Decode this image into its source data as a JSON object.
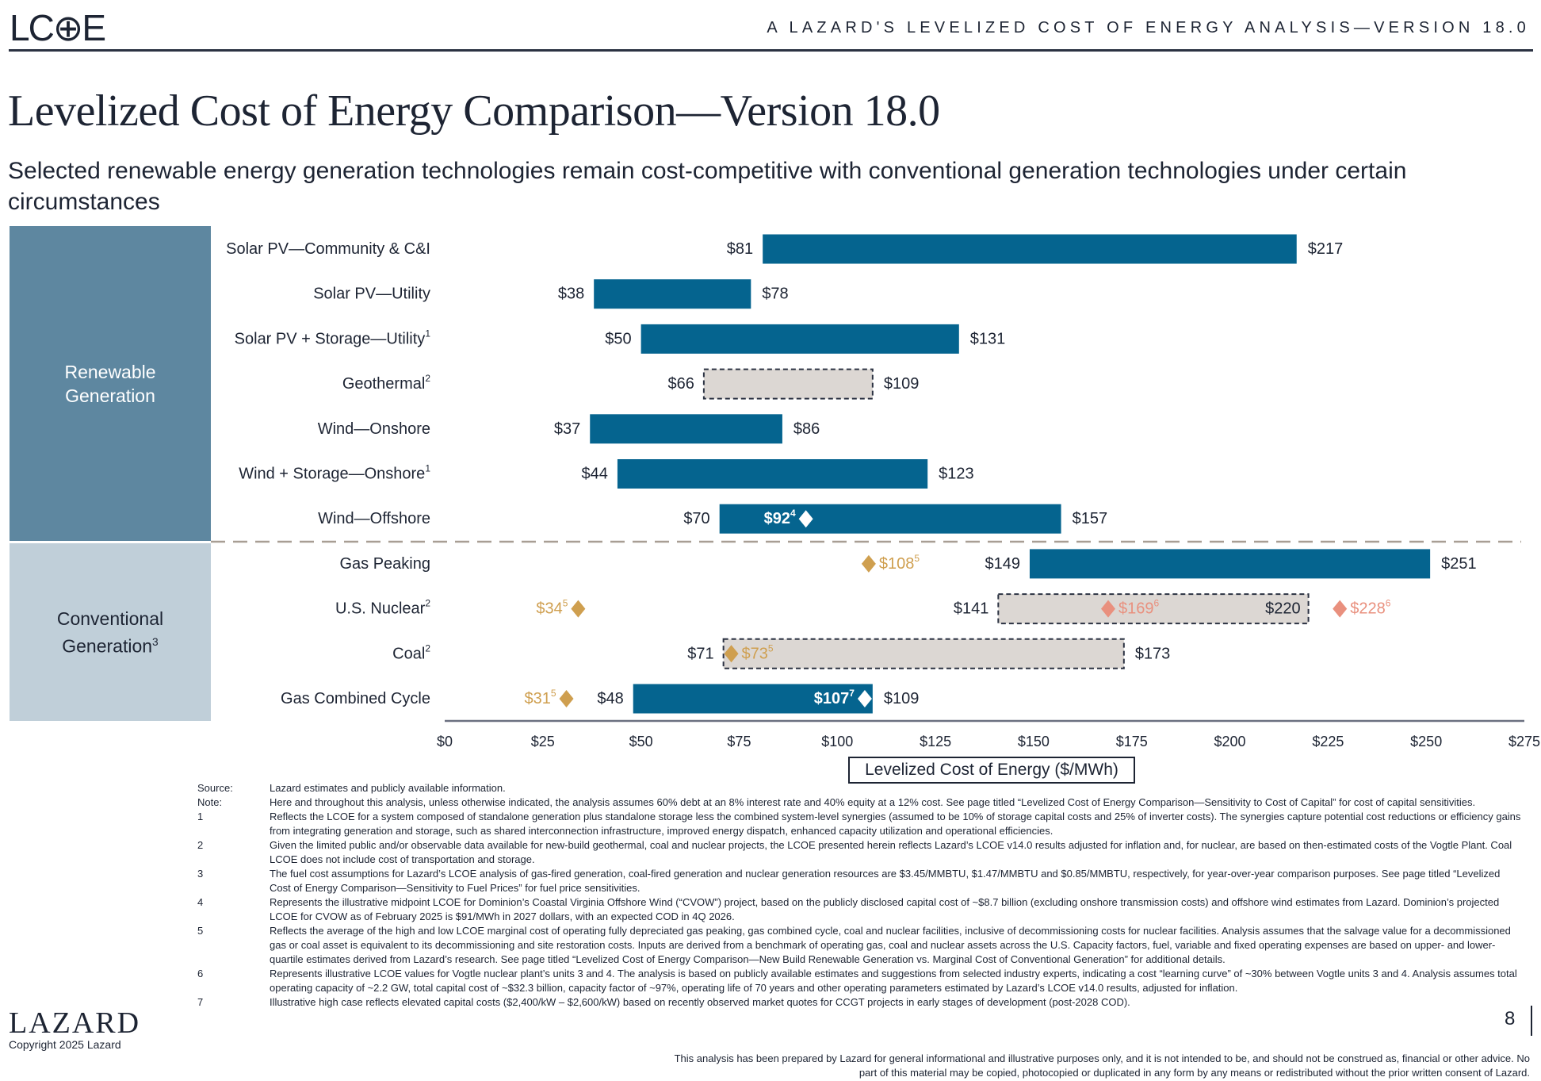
{
  "header": {
    "logo": "LC⊕E",
    "section_title": "A   LAZARD'S LEVELIZED COST OF ENERGY ANALYSIS—VERSION 18.0"
  },
  "title": "Levelized Cost of Energy Comparison—Version 18.0",
  "subtitle": "Selected renewable energy generation technologies remain cost-competitive with conventional generation technologies under certain circumstances",
  "groups": {
    "renewable": {
      "line1": "Renewable",
      "line2": "Generation"
    },
    "conventional": {
      "line1": "Conventional",
      "line2": "Generation",
      "sup": "3"
    }
  },
  "colors": {
    "bar": "#05648f",
    "dashed_fill": "#dcd7d3",
    "gold": "#cf9f4f",
    "salmon": "#e9907e",
    "text": "#1d2433"
  },
  "chart_data": {
    "type": "bar",
    "subtype": "floating-range",
    "xlabel": "Levelized Cost of Energy ($/MWh)",
    "xlim": [
      0,
      275
    ],
    "xticks": [
      "$0",
      "$25",
      "$50",
      "$75",
      "$100",
      "$125",
      "$150",
      "$175",
      "$200",
      "$225",
      "$250",
      "$275"
    ],
    "xtick_values": [
      0,
      25,
      50,
      75,
      100,
      125,
      150,
      175,
      200,
      225,
      250,
      275
    ],
    "rows": [
      {
        "label": "Solar PV—Community & C&I",
        "sup": "",
        "group": "renewable",
        "min": 81,
        "max": 217,
        "style": "solid",
        "min_label": "$81",
        "max_label": "$217",
        "markers": []
      },
      {
        "label": "Solar PV—Utility",
        "sup": "",
        "group": "renewable",
        "min": 38,
        "max": 78,
        "style": "solid",
        "min_label": "$38",
        "max_label": "$78",
        "markers": []
      },
      {
        "label": "Solar PV + Storage—Utility",
        "sup": "1",
        "group": "renewable",
        "min": 50,
        "max": 131,
        "style": "solid",
        "min_label": "$50",
        "max_label": "$131",
        "markers": []
      },
      {
        "label": "Geothermal",
        "sup": "2",
        "group": "renewable",
        "min": 66,
        "max": 109,
        "style": "dashed",
        "min_label": "$66",
        "max_label": "$109",
        "markers": []
      },
      {
        "label": "Wind—Onshore",
        "sup": "",
        "group": "renewable",
        "min": 37,
        "max": 86,
        "style": "solid",
        "min_label": "$37",
        "max_label": "$86",
        "markers": []
      },
      {
        "label": "Wind + Storage—Onshore",
        "sup": "1",
        "group": "renewable",
        "min": 44,
        "max": 123,
        "style": "solid",
        "min_label": "$44",
        "max_label": "$123",
        "markers": []
      },
      {
        "label": "Wind—Offshore",
        "sup": "",
        "group": "renewable",
        "min": 70,
        "max": 157,
        "style": "solid",
        "min_label": "$70",
        "max_label": "$157",
        "markers": [
          {
            "value": 92,
            "label": "$92",
            "sup": "4",
            "color": "white",
            "side": "left"
          }
        ]
      },
      {
        "label": "Gas Peaking",
        "sup": "",
        "group": "conventional",
        "min": 149,
        "max": 251,
        "style": "solid",
        "min_label": "$149",
        "max_label": "$251",
        "markers": [
          {
            "value": 108,
            "label": "$108",
            "sup": "5",
            "color": "gold",
            "side": "right"
          }
        ]
      },
      {
        "label": "U.S. Nuclear",
        "sup": "2",
        "group": "conventional",
        "min": 141,
        "max": 220,
        "style": "dashed",
        "min_label": "$141",
        "max_label": "$220",
        "max_inside": true,
        "markers": [
          {
            "value": 34,
            "label": "$34",
            "sup": "5",
            "color": "gold",
            "side": "left"
          },
          {
            "value": 169,
            "label": "$169",
            "sup": "6",
            "color": "salmon",
            "side": "right"
          },
          {
            "value": 228,
            "label": "$228",
            "sup": "6",
            "color": "salmon",
            "side": "right"
          }
        ]
      },
      {
        "label": "Coal",
        "sup": "2",
        "group": "conventional",
        "min": 71,
        "max": 173,
        "style": "dashed",
        "min_label": "$71",
        "max_label": "$173",
        "markers": [
          {
            "value": 73,
            "label": "$73",
            "sup": "5",
            "color": "gold",
            "side": "right"
          }
        ]
      },
      {
        "label": "Gas Combined Cycle",
        "sup": "",
        "group": "conventional",
        "min": 48,
        "max": 109,
        "style": "solid",
        "min_label": "$48",
        "max_label": "$109",
        "markers": [
          {
            "value": 31,
            "label": "$31",
            "sup": "5",
            "color": "gold",
            "side": "left"
          },
          {
            "value": 107,
            "label": "$107",
            "sup": "7",
            "color": "white",
            "side": "left"
          }
        ]
      }
    ]
  },
  "notes": [
    {
      "key": "Source:",
      "text": "Lazard estimates and publicly available information."
    },
    {
      "key": "Note:",
      "text": "Here and throughout this analysis, unless otherwise indicated, the analysis assumes 60% debt at an 8% interest rate and 40% equity at a 12% cost. See page titled “Levelized Cost of Energy Comparison—Sensitivity to Cost of Capital” for cost of capital sensitivities."
    },
    {
      "key": "1",
      "text": "Reflects the LCOE for a system composed of standalone generation plus standalone storage less the combined system-level synergies (assumed to be 10% of storage capital costs and 25% of inverter costs). The synergies capture potential cost reductions or efficiency gains from integrating generation and storage, such as shared interconnection infrastructure, improved energy dispatch, enhanced capacity utilization and operational efficiencies."
    },
    {
      "key": "2",
      "text": "Given the limited public and/or observable data available for new-build geothermal, coal and nuclear projects, the LCOE presented herein reflects Lazard’s LCOE v14.0 results adjusted for inflation and, for nuclear, are based on then-estimated costs of the Vogtle Plant. Coal LCOE does not include cost of transportation and storage."
    },
    {
      "key": "3",
      "text": "The fuel cost assumptions for Lazard’s LCOE analysis of gas-fired generation, coal-fired generation and nuclear generation resources are $3.45/MMBTU, $1.47/MMBTU and $0.85/MMBTU, respectively, for year-over-year comparison purposes. See page titled “Levelized Cost of Energy Comparison—Sensitivity to Fuel Prices” for fuel price sensitivities."
    },
    {
      "key": "4",
      "text": "Represents the illustrative midpoint LCOE for Dominion’s Coastal Virginia Offshore Wind (“CVOW”) project, based on the publicly disclosed capital cost of ~$8.7 billion (excluding onshore transmission costs) and offshore wind estimates from Lazard. Dominion’s projected LCOE for CVOW as of February 2025 is $91/MWh in 2027 dollars, with an expected COD in 4Q 2026."
    },
    {
      "key": "5",
      "text": "Reflects the average of the high and low LCOE marginal cost of operating fully depreciated gas peaking, gas combined cycle, coal and nuclear facilities, inclusive of decommissioning costs for nuclear facilities. Analysis assumes that the salvage value for a decommissioned gas or coal asset is equivalent to its decommissioning and site restoration costs. Inputs are derived from a benchmark of operating gas, coal and nuclear assets across the U.S. Capacity factors, fuel, variable and fixed operating expenses are based on upper- and lower-quartile estimates derived from Lazard’s research. See page titled “Levelized Cost of Energy Comparison—New Build Renewable Generation vs. Marginal Cost of Conventional Generation” for additional details."
    },
    {
      "key": "6",
      "text": "Represents illustrative LCOE values for Vogtle nuclear plant’s units 3 and 4. The analysis is based on publicly available estimates and suggestions from selected industry experts, indicating a cost “learning curve” of ~30% between Vogtle units 3 and 4. Analysis assumes total operating capacity of ~2.2 GW, total capital cost of ~$32.3 billion, capacity factor of ~97%, operating life of 70 years and other operating parameters estimated by Lazard’s LCOE v14.0 results, adjusted for inflation."
    },
    {
      "key": "7",
      "text": "Illustrative high case reflects elevated capital costs ($2,400/kW – $2,600/kW) based on recently observed market quotes for CCGT projects in early stages of development (post-2028 COD)."
    }
  ],
  "disclaimer": "This analysis has been prepared by Lazard for general informational and illustrative purposes only, and it is not intended to be, and should not be construed as, financial or other advice. No part of this material may be copied, photocopied or duplicated in any form by any means or redistributed without the prior written consent of Lazard.",
  "footer": {
    "brand": "LAZARD",
    "copyright": "Copyright 2025 Lazard",
    "page": "8"
  }
}
